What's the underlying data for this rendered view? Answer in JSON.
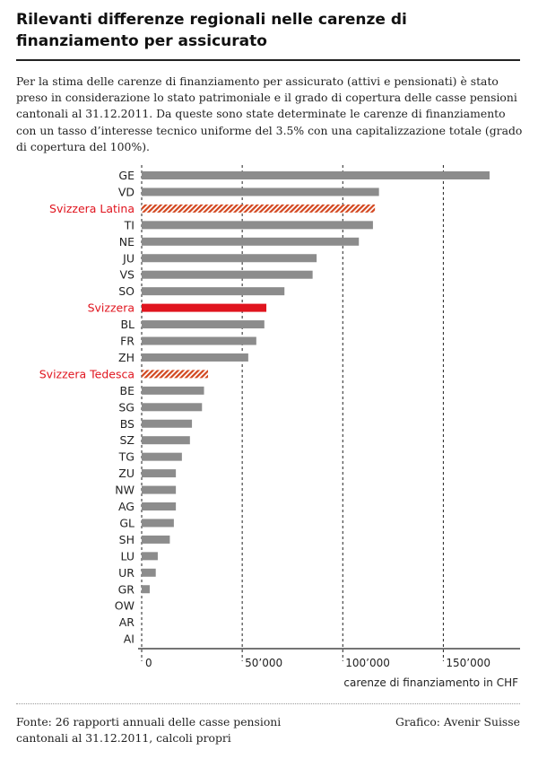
{
  "header": {
    "title": "Rilevanti differenze regionali nelle carenze di finanziamento per assicurato"
  },
  "intro": {
    "text": "Per la stima delle carenze di finanziamento per assicurato (attivi e pensionati) è stato preso in considerazione lo stato patrimoniale e il grado di copertura delle casse pensioni cantonali al 31.12.2011. Da queste sono state determinate le carenze di finanziamento con un tasso d’interesse tecnico uniforme del 3.5% con una capitalizzazione totale (grado di copertura del 100%)."
  },
  "footer": {
    "source": "Fonte: 26 rapporti annuali delle casse pensioni cantonali al 31.12.2011, calcoli propri",
    "credit": "Grafico: Avenir Suisse"
  },
  "colors": {
    "canton_bar": "#8c8c8c",
    "national_bar": "#e0141e",
    "region_hatch": "#d2461e",
    "highlight_label": "#e0141e"
  },
  "chart_data": {
    "type": "bar",
    "orientation": "horizontal",
    "title": "",
    "xlabel": "carenze di finanziamento in CHF",
    "ylabel": "",
    "xlim": [
      0,
      185000
    ],
    "xticks": [
      0,
      50000,
      100000,
      150000
    ],
    "xtick_labels": [
      "0",
      "50’000",
      "100’000",
      "150’000"
    ],
    "grid": "vertical dashed",
    "categories": [
      "GE",
      "VD",
      "Svizzera Latina",
      "TI",
      "NE",
      "JU",
      "VS",
      "SO",
      "Svizzera",
      "BL",
      "FR",
      "ZH",
      "Svizzera Tedesca",
      "BE",
      "SG",
      "BS",
      "SZ",
      "TG",
      "ZU",
      "NW",
      "AG",
      "GL",
      "SH",
      "LU",
      "UR",
      "GR",
      "OW",
      "AR",
      "AI"
    ],
    "values": [
      173000,
      118000,
      116000,
      115000,
      108000,
      87000,
      85000,
      71000,
      62000,
      61000,
      57000,
      53000,
      33000,
      31000,
      30000,
      25000,
      24000,
      20000,
      17000,
      17000,
      17000,
      16000,
      14000,
      8000,
      7000,
      4000,
      0,
      0,
      0
    ],
    "styles": [
      "canton",
      "canton",
      "region",
      "canton",
      "canton",
      "canton",
      "canton",
      "canton",
      "national",
      "canton",
      "canton",
      "canton",
      "region",
      "canton",
      "canton",
      "canton",
      "canton",
      "canton",
      "canton",
      "canton",
      "canton",
      "canton",
      "canton",
      "canton",
      "canton",
      "canton",
      "canton",
      "canton",
      "canton"
    ]
  }
}
